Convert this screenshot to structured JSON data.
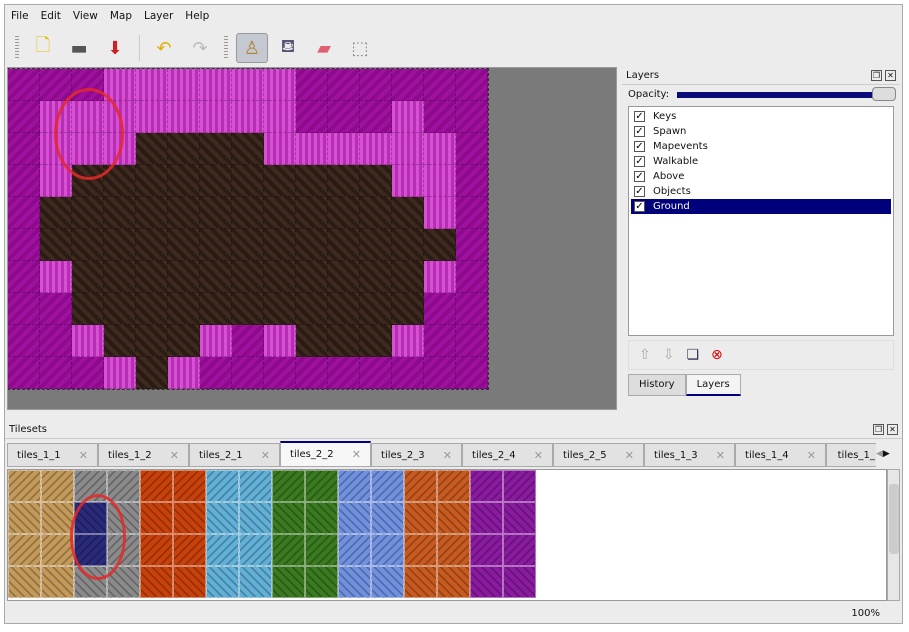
{
  "menu": [
    "File",
    "Edit",
    "View",
    "Map",
    "Layer",
    "Help"
  ],
  "toolbar": {
    "icons": [
      "new-icon",
      "open-icon",
      "save-icon",
      "undo-icon",
      "redo-icon",
      "stamp-brush-icon",
      "bucket-fill-icon",
      "eraser-icon",
      "rectangle-select-icon"
    ],
    "active": "stamp-brush-icon"
  },
  "map": {
    "rows": [
      "MMMPPPPPPMMMMMM",
      "MPPPPPPPPMMMPMM",
      "MPPPDDDDPPPPPPM",
      "MPDDDDDDDDDDPPM",
      "MDDDDDDDDDDDDPM",
      "MDDDDDDDDDDDDDM",
      "MPDDDDDDDDDDDPM",
      "MMDDDDDDDDDDDMM",
      "MMPDDDPMPDDDPMM",
      "MMMPDPMMMMMMMMM"
    ]
  },
  "layers_panel": {
    "title": "Layers",
    "opacity_label": "Opacity:",
    "opacity": 1.0,
    "items": [
      {
        "name": "Keys",
        "checked": true
      },
      {
        "name": "Spawn",
        "checked": true
      },
      {
        "name": "Mapevents",
        "checked": true
      },
      {
        "name": "Walkable",
        "checked": true
      },
      {
        "name": "Above",
        "checked": true
      },
      {
        "name": "Objects",
        "checked": true
      },
      {
        "name": "Ground",
        "checked": true,
        "selected": true
      }
    ],
    "tabs": [
      "History",
      "Layers"
    ],
    "active_tab": "Layers"
  },
  "tilesets": {
    "title": "Tilesets",
    "tabs": [
      "tiles_1_1",
      "tiles_1_2",
      "tiles_2_1",
      "tiles_2_2",
      "tiles_2_3",
      "tiles_2_4",
      "tiles_2_5",
      "tiles_1_3",
      "tiles_1_4",
      "tiles_1_"
    ],
    "active": "tiles_2_2",
    "colors": [
      "#c49a5a",
      "#8a8a8a",
      "#c8400a",
      "#60b0d8",
      "#3a7a20",
      "#7090e0",
      "#c85a20",
      "#8a1aa0"
    ]
  },
  "status": {
    "zoom": "100%"
  }
}
